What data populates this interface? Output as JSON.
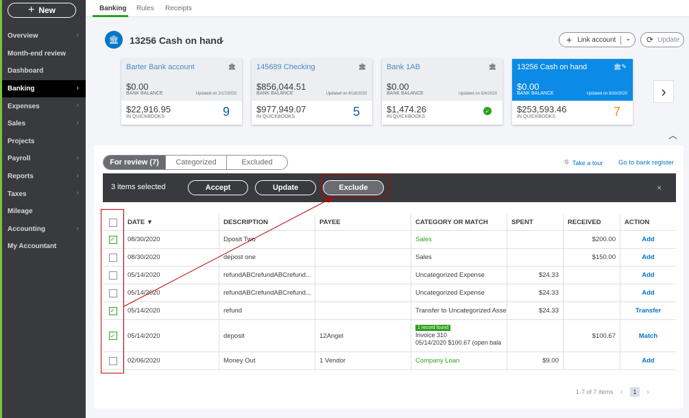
{
  "sidebar": {
    "new_label": "New",
    "items": [
      {
        "label": "Overview",
        "chevron": true,
        "active": false
      },
      {
        "label": "Month-end review",
        "chevron": false,
        "active": false
      },
      {
        "label": "Dashboard",
        "chevron": false,
        "active": false
      },
      {
        "label": "Banking",
        "chevron": true,
        "active": true
      },
      {
        "label": "Expenses",
        "chevron": true,
        "active": false
      },
      {
        "label": "Sales",
        "chevron": true,
        "active": false
      },
      {
        "label": "Projects",
        "chevron": false,
        "active": false
      },
      {
        "label": "Payroll",
        "chevron": true,
        "active": false
      },
      {
        "label": "Reports",
        "chevron": true,
        "active": false
      },
      {
        "label": "Taxes",
        "chevron": true,
        "active": false
      },
      {
        "label": "Mileage",
        "chevron": false,
        "active": false
      },
      {
        "label": "Accounting",
        "chevron": true,
        "active": false
      },
      {
        "label": "My Accountant",
        "chevron": false,
        "active": false
      }
    ]
  },
  "top_tabs": [
    "Banking",
    "Rules",
    "Receipts"
  ],
  "account": {
    "title": "13256 Cash on hand",
    "link_account": "Link account",
    "update": "Update"
  },
  "cards": [
    {
      "name": "Barter Bank account",
      "bank_balance": "$0.00",
      "bank_balance_label": "BANK BALANCE",
      "updated": "Updated on 2/17/2020",
      "qb_balance": "$22,916.95",
      "qb_label": "IN QUICKBOOKS",
      "count": "9",
      "selected": false
    },
    {
      "name": "145689 Checking",
      "bank_balance": "$856,044.51",
      "bank_balance_label": "BANK BALANCE",
      "updated": "Updated on 6/18/2020",
      "qb_balance": "$977,949.07",
      "qb_label": "IN QUICKBOOKS",
      "count": "5",
      "selected": false
    },
    {
      "name": "Bank 1AB",
      "bank_balance": "$0.00",
      "bank_balance_label": "BANK BALANCE",
      "updated": "Updated on 5/4/2020",
      "qb_balance": "$1,474.26",
      "qb_label": "IN QUICKBOOKS",
      "count": "",
      "selected": false
    },
    {
      "name": "13256 Cash on hand",
      "bank_balance": "$0.00",
      "bank_balance_label": "BANK BALANCE",
      "updated": "Updated on 8/30/2020",
      "qb_balance": "$253,593.46",
      "qb_label": "IN QUICKBOOKS",
      "count": "7",
      "selected": true
    }
  ],
  "sub_tabs": [
    "For review (7)",
    "Categorized",
    "Excluded"
  ],
  "links": {
    "take_tour": "Take a tour",
    "bank_register": "Go to bank register"
  },
  "action_bar": {
    "selected_text": "3 items selected",
    "accept": "Accept",
    "update": "Update",
    "exclude": "Exclude",
    "close": "×"
  },
  "table": {
    "headers": [
      "DATE ▼",
      "DESCRIPTION",
      "PAYEE",
      "CATEGORY OR MATCH",
      "SPENT",
      "RECEIVED",
      "ACTION"
    ],
    "rows": [
      {
        "checked": true,
        "date": "08/30/2020",
        "description": "Dposit Two",
        "payee": "",
        "category": "Sales",
        "cat_green": true,
        "spent": "",
        "received": "$200.00",
        "action": "Add"
      },
      {
        "checked": false,
        "date": "08/30/2020",
        "description": "depost one",
        "payee": "",
        "category": "Sales",
        "cat_green": false,
        "spent": "",
        "received": "$150.00",
        "action": "Add"
      },
      {
        "checked": false,
        "date": "05/14/2020",
        "description": "refundABCrefundABCrefund...",
        "payee": "",
        "category": "Uncategorized Expense",
        "cat_green": false,
        "spent": "$24.33",
        "received": "",
        "action": "Add"
      },
      {
        "checked": false,
        "date": "05/14/2020",
        "description": "refundABCrefundABCrefund...",
        "payee": "",
        "category": "Uncategorized Expense",
        "cat_green": false,
        "spent": "$24.33",
        "received": "",
        "action": "Add"
      },
      {
        "checked": true,
        "date": "05/14/2020",
        "description": "refund",
        "payee": "",
        "category": "Transfer to Uncategorized Asset",
        "cat_green": false,
        "spent": "$24.33",
        "received": "",
        "action": "Transfer"
      },
      {
        "checked": true,
        "date": "05/14/2020",
        "description": "deposit",
        "payee": "12Angel",
        "category": "",
        "match_badge": "1 record found",
        "match_line1": "Invoice 310",
        "match_line2": "05/14/2020 $100.67 (open bala",
        "cat_green": false,
        "spent": "",
        "received": "$100.67",
        "action": "Match"
      },
      {
        "checked": false,
        "date": "02/06/2020",
        "description": "Money Out",
        "payee": "1 Vendor",
        "category": "Company Loan",
        "cat_green": true,
        "spent": "$9.00",
        "received": "",
        "action": "Add"
      }
    ]
  },
  "pager": {
    "range": "1-7 of 7 items",
    "page": "1"
  }
}
